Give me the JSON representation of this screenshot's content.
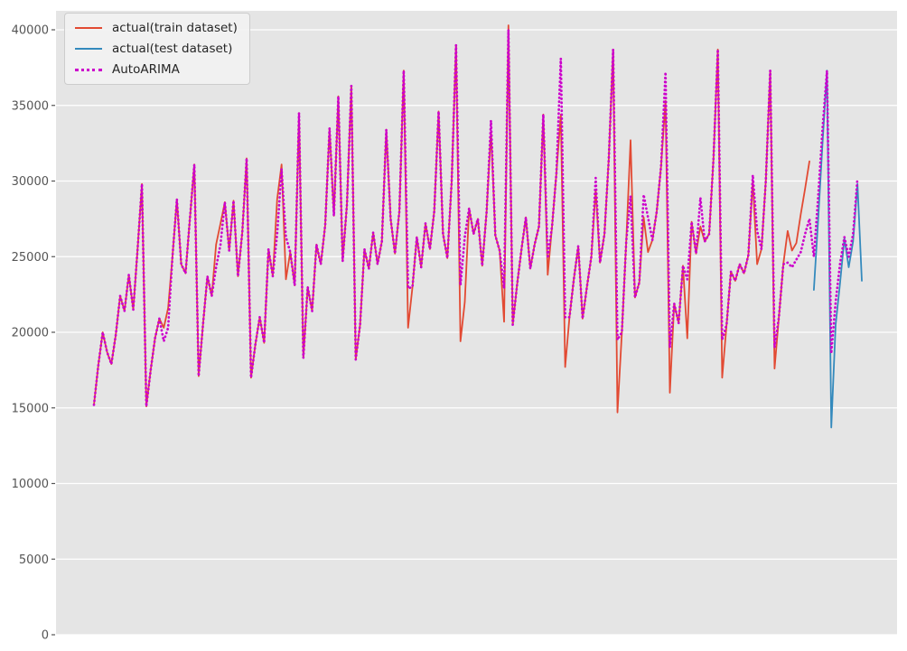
{
  "figure": {
    "background": "#ffffff",
    "plot_background": "#e5e5e5",
    "grid_color": "#ffffff",
    "tick_color": "#555555",
    "tick_label_color": "#555555"
  },
  "legend": {
    "position": "upper left",
    "entries": [
      {
        "label": "actual(train dataset)",
        "color": "#E24A33",
        "line_style": "solid"
      },
      {
        "label": "actual(test dataset)",
        "color": "#348ABD",
        "line_style": "solid"
      },
      {
        "label": "AutoARIMA",
        "color": "#CC00CC",
        "line_style": "dotted"
      }
    ]
  },
  "chart_data": {
    "type": "line",
    "title": "",
    "xlabel": "",
    "ylabel": "",
    "x_unit": "monthly observation index (no x tick labels shown)",
    "grid": true,
    "legend_position": "upper left",
    "ylim": [
      0,
      41300
    ],
    "yticks": [
      0,
      5000,
      10000,
      15000,
      20000,
      25000,
      30000,
      35000,
      40000
    ],
    "x_total_points": 177,
    "series": [
      {
        "name": "actual(train dataset)",
        "color": "#E24A33",
        "line_style": "solid",
        "x_start": 0,
        "values": [
          15200,
          17800,
          20000,
          18700,
          17900,
          19800,
          22400,
          21400,
          23800,
          21500,
          25500,
          29800,
          15100,
          17500,
          19600,
          20900,
          20300,
          21600,
          25000,
          28800,
          24500,
          23900,
          27500,
          31100,
          17100,
          20500,
          23700,
          22400,
          25800,
          27200,
          28600,
          25400,
          28700,
          23700,
          26600,
          31500,
          17000,
          19200,
          21000,
          19300,
          25500,
          23700,
          28800,
          31100,
          23500,
          25300,
          23100,
          34500,
          18300,
          23000,
          21400,
          25800,
          24500,
          27100,
          33500,
          27700,
          35600,
          24700,
          28500,
          36300,
          18200,
          20500,
          25500,
          24200,
          26600,
          24500,
          26000,
          33400,
          27500,
          25200,
          28000,
          37300,
          20300,
          23000,
          26300,
          24300,
          27200,
          25500,
          28000,
          34600,
          26500,
          24900,
          30000,
          39000,
          19400,
          22000,
          28200,
          26500,
          27500,
          24400,
          28000,
          33300,
          26400,
          25400,
          20700,
          40300,
          20500,
          23200,
          25500,
          27600,
          24200,
          25800,
          27000,
          34400,
          23800,
          27000,
          30500,
          34400,
          17700,
          21000,
          23500,
          25700,
          20900,
          23000,
          25000,
          29400,
          24600,
          26500,
          31500,
          38700,
          14700,
          20000,
          26000,
          32700,
          22300,
          23300,
          27600,
          25300,
          26100,
          28000,
          31000,
          35300,
          16000,
          21900,
          20600,
          24400,
          19600,
          27300,
          25200,
          27000,
          26000,
          26500,
          31500,
          38700,
          17000,
          20500,
          24000,
          23400,
          24500,
          23900,
          25100,
          30000,
          24500,
          25500,
          30000,
          37300,
          17600,
          21000,
          24500,
          26700,
          25400,
          25900,
          27800,
          29500,
          31300
        ]
      },
      {
        "name": "actual(test dataset)",
        "color": "#348ABD",
        "line_style": "solid",
        "x_start": 165,
        "values": [
          22800,
          27500,
          32500,
          37300,
          13700,
          20500,
          23200,
          26200,
          24300,
          26000,
          29800,
          23400
        ]
      },
      {
        "name": "AutoARIMA",
        "color": "#CC00CC",
        "line_style": "dotted",
        "x_start": 0,
        "values": [
          15200,
          17800,
          20000,
          18700,
          17900,
          19800,
          22400,
          21400,
          23800,
          21500,
          25500,
          29800,
          15100,
          17500,
          19600,
          20900,
          19400,
          20300,
          25000,
          28800,
          24500,
          23900,
          27500,
          31100,
          17100,
          20500,
          23700,
          22400,
          24300,
          25800,
          28600,
          25400,
          28700,
          23700,
          26600,
          31500,
          17000,
          19200,
          21000,
          19300,
          25500,
          23700,
          26500,
          30800,
          26300,
          25300,
          23100,
          34500,
          18300,
          23000,
          21400,
          25800,
          24500,
          27100,
          33500,
          27700,
          35600,
          24700,
          28500,
          36300,
          18200,
          20500,
          25500,
          24200,
          26600,
          24500,
          26000,
          33400,
          27500,
          25200,
          28000,
          37300,
          22900,
          23000,
          26300,
          24300,
          27200,
          25500,
          28000,
          34600,
          26500,
          24900,
          30000,
          39000,
          23100,
          26300,
          28200,
          26500,
          27500,
          24400,
          28000,
          34000,
          26400,
          25400,
          22900,
          40000,
          20500,
          23200,
          25500,
          27600,
          24200,
          25800,
          27000,
          34400,
          24900,
          27000,
          30500,
          38100,
          21000,
          21000,
          23500,
          25700,
          20900,
          23000,
          25000,
          30200,
          24600,
          26500,
          31500,
          38700,
          19500,
          20000,
          26000,
          29000,
          22300,
          23300,
          29100,
          27600,
          26100,
          28000,
          31000,
          37200,
          19000,
          21900,
          20600,
          24400,
          23500,
          27300,
          25200,
          28900,
          26000,
          26500,
          31500,
          38700,
          19500,
          20500,
          24000,
          23400,
          24500,
          23900,
          25100,
          30400,
          26700,
          25500,
          30000,
          37300,
          19000,
          21000,
          24500,
          24600,
          24300,
          24800,
          25300,
          26500,
          27500,
          25000,
          29000,
          33500,
          37300,
          18600,
          22000,
          24500,
          26300,
          25000,
          26500,
          30200
        ]
      }
    ]
  }
}
